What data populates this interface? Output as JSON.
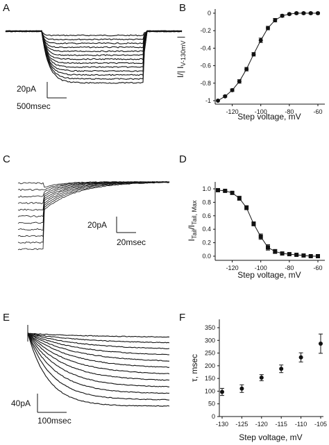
{
  "chart_data": [
    {
      "panel": "A",
      "type": "line",
      "kind": "current-traces",
      "scale_bar": {
        "y_label": "20pA",
        "x_label": "500msec"
      },
      "trace_count": 13
    },
    {
      "panel": "B",
      "type": "scatter",
      "x_ticks": [
        "-120",
        "-100",
        "-80",
        "-60"
      ],
      "y_ticks": [
        "0",
        "-0.2",
        "-0.4",
        "-0.6",
        "-0.8",
        "-1"
      ],
      "xlabel": "Step voltage, mV",
      "ylabel_main": "I/| I",
      "ylabel_sub": "V-130mV",
      "ylabel_end": " |",
      "xlim": [
        -130,
        -60
      ],
      "ylim": [
        -1,
        0
      ],
      "series": [
        {
          "x": [
            -130,
            -125,
            -120,
            -115,
            -110,
            -105,
            -100,
            -95,
            -90,
            -85,
            -80,
            -75,
            -70,
            -65,
            -60
          ],
          "y": [
            -1.0,
            -0.95,
            -0.88,
            -0.78,
            -0.64,
            -0.47,
            -0.31,
            -0.17,
            -0.08,
            -0.03,
            -0.01,
            0.0,
            0.0,
            0.0,
            0.0
          ],
          "err": [
            0.0,
            0.01,
            0.015,
            0.02,
            0.02,
            0.02,
            0.025,
            0.02,
            0.02,
            0.015,
            0.01,
            0.01,
            0.01,
            0.01,
            0.01
          ]
        }
      ]
    },
    {
      "panel": "C",
      "type": "line",
      "kind": "tail-current-traces",
      "scale_bar": {
        "y_label": "20pA",
        "x_label": "20msec"
      },
      "trace_count": 11
    },
    {
      "panel": "D",
      "type": "scatter",
      "x_ticks": [
        "-120",
        "-100",
        "-80",
        "-60"
      ],
      "y_ticks": [
        "1.0",
        "0.8",
        "0.6",
        "0.4",
        "0.2",
        "0.0"
      ],
      "xlabel": "Step voltage, mV",
      "ylabel_main": "I",
      "ylabel_sub1": "Tail",
      "ylabel_mid": "/I",
      "ylabel_sub2": "Tail, Max",
      "xlim": [
        -130,
        -60
      ],
      "ylim": [
        0,
        1.0
      ],
      "series": [
        {
          "x": [
            -130,
            -125,
            -120,
            -115,
            -110,
            -105,
            -100,
            -95,
            -90,
            -85,
            -80,
            -75,
            -70,
            -65,
            -60
          ],
          "y": [
            0.98,
            0.97,
            0.94,
            0.86,
            0.72,
            0.48,
            0.29,
            0.13,
            0.07,
            0.04,
            0.03,
            0.02,
            0.01,
            0.0,
            0.0
          ],
          "err": [
            0.01,
            0.01,
            0.02,
            0.03,
            0.03,
            0.03,
            0.04,
            0.04,
            0.03,
            0.02,
            0.02,
            0.01,
            0.01,
            0.01,
            0.01
          ]
        }
      ]
    },
    {
      "panel": "E",
      "type": "line",
      "kind": "activation-traces",
      "scale_bar": {
        "y_label": "40pA",
        "x_label": "100msec"
      },
      "trace_count": 12
    },
    {
      "panel": "F",
      "type": "scatter",
      "x_ticks": [
        "-130",
        "-125",
        "-120",
        "-115",
        "-110",
        "-105"
      ],
      "y_ticks": [
        "0",
        "50",
        "100",
        "150",
        "200",
        "250",
        "300",
        "350"
      ],
      "xlabel": "Step voltage, mV",
      "ylabel": "τ, msec",
      "xlim": [
        -130,
        -105
      ],
      "ylim": [
        0,
        350
      ],
      "series": [
        {
          "x": [
            -130,
            -125,
            -120,
            -115,
            -110,
            -105
          ],
          "y": [
            97,
            110,
            153,
            188,
            233,
            287
          ],
          "err": [
            14,
            15,
            12,
            15,
            18,
            38
          ]
        }
      ]
    }
  ]
}
